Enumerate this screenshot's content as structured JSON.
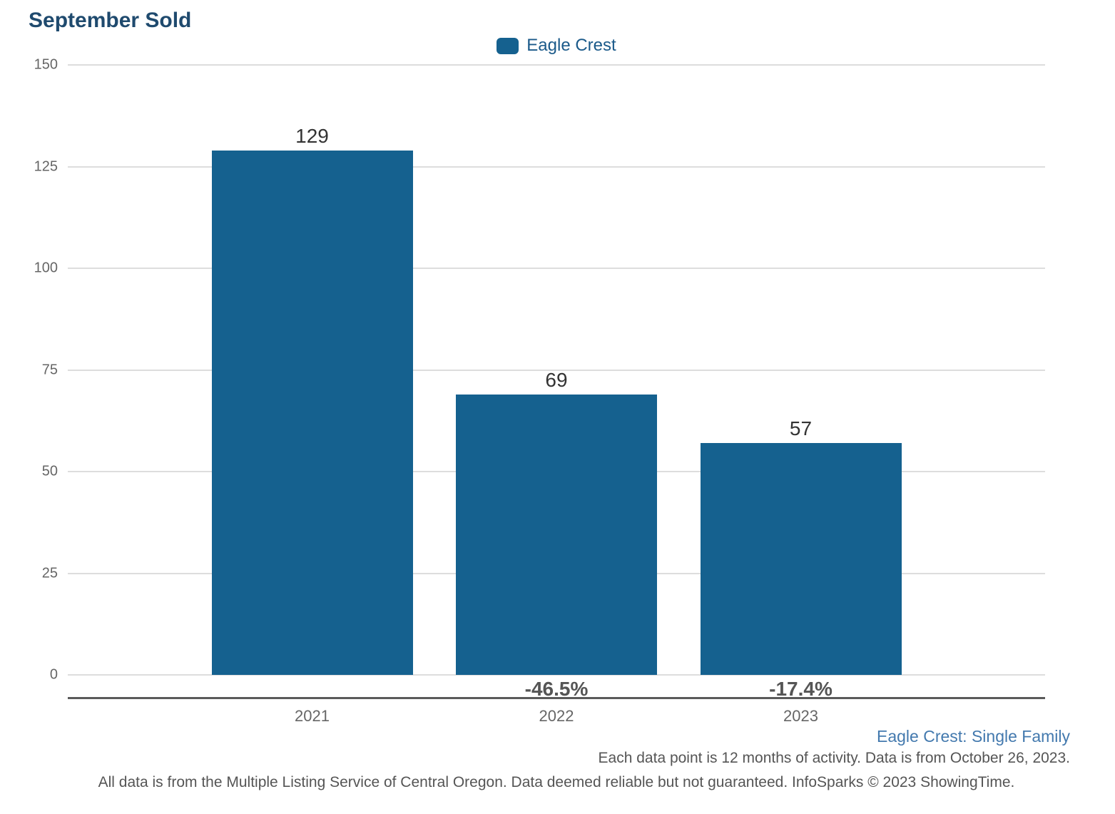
{
  "title": "September Sold",
  "legend": {
    "label": "Eagle Crest",
    "swatch_color": "#15618f"
  },
  "chart_data": {
    "type": "bar",
    "title": "September Sold",
    "series_name": "Eagle Crest",
    "categories": [
      "2021",
      "2022",
      "2023"
    ],
    "values": [
      129,
      69,
      57
    ],
    "pct_change_labels": [
      "",
      "-46.5%",
      "-17.4%"
    ],
    "ylim": [
      0,
      150
    ],
    "yticks": [
      0,
      25,
      50,
      75,
      100,
      125,
      150
    ],
    "grid": "horizontal",
    "legend_position": "top-center",
    "bar_color": "#15618f",
    "xlabel": "",
    "ylabel": ""
  },
  "footer": {
    "segment_label": "Eagle Crest: Single Family",
    "data_note": "Each data point is 12 months of activity. Data is from October 26, 2023.",
    "disclaimer": "All data is from the Multiple Listing Service of Central Oregon. Data deemed reliable but not guaranteed. InfoSparks © 2023 ShowingTime."
  },
  "colors": {
    "bar": "#15618f",
    "title_text": "#1f4a6e",
    "gridline": "#dddddd",
    "axis_line": "#5a5a5a",
    "tick_text": "#666666",
    "value_text": "#333333",
    "pct_text": "#555555",
    "segment_link": "#4379ae"
  }
}
